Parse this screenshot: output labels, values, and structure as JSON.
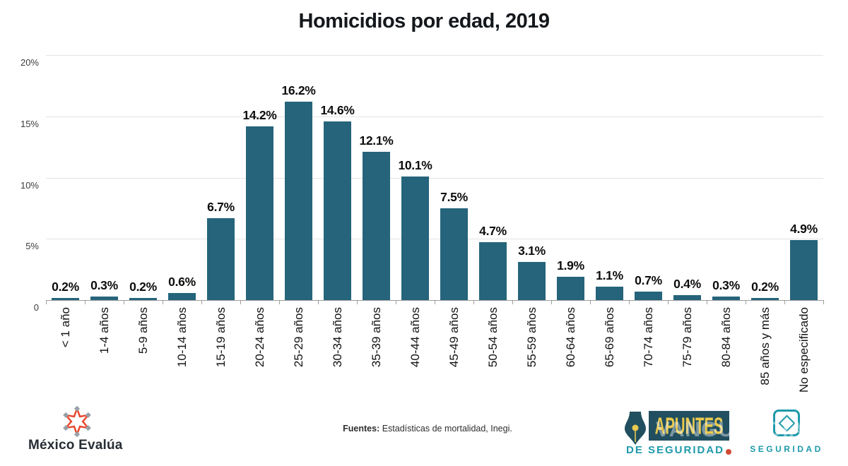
{
  "title": "Homicidios por edad, 2019",
  "chart_data": {
    "type": "bar",
    "title": "Homicidios por edad, 2019",
    "categories": [
      "< 1 año",
      "1-4 años",
      "5-9 años",
      "10-14 años",
      "15-19 años",
      "20-24 años",
      "25-29 años",
      "30-34 años",
      "35-39 años",
      "40-44 años",
      "45-49 años",
      "50-54 años",
      "55-59 años",
      "60-64 años",
      "65-69 años",
      "70-74 años",
      "75-79 años",
      "80-84 años",
      "85 años y más",
      "No especificado"
    ],
    "values": [
      0.2,
      0.3,
      0.2,
      0.6,
      6.7,
      14.2,
      16.2,
      14.6,
      12.1,
      10.1,
      7.5,
      4.7,
      3.1,
      1.9,
      1.1,
      0.7,
      0.4,
      0.3,
      0.2,
      4.9
    ],
    "value_labels": [
      "0.2%",
      "0.3%",
      "0.2%",
      "0.6%",
      "6.7%",
      "14.2%",
      "16.2%",
      "14.6%",
      "12.1%",
      "10.1%",
      "7.5%",
      "4.7%",
      "3.1%",
      "1.9%",
      "1.1%",
      "0.7%",
      "0.4%",
      "0.3%",
      "0.2%",
      "4.9%"
    ],
    "xlabel": "",
    "ylabel": "",
    "ylim": [
      0,
      20
    ],
    "yticks": [
      {
        "value": 0,
        "label": "0"
      },
      {
        "value": 5,
        "label": "5%"
      },
      {
        "value": 10,
        "label": "10%"
      },
      {
        "value": 15,
        "label": "15%"
      },
      {
        "value": 20,
        "label": "20%"
      }
    ],
    "grid": true,
    "legend": false,
    "bar_color": "#25647B"
  },
  "footer": {
    "source_label": "Fuentes:",
    "source_text": " Estadísticas de mortalidad, Inegi.",
    "mexico_evalua": {
      "name": "México Evalúa",
      "star_color": "#E8482E",
      "tip_color": "#98A1A8",
      "text_color": "#272D35"
    },
    "apuntes": {
      "line1": "APUNTES",
      "line2": "DE SEGURIDAD",
      "box_color": "#214F60",
      "line1_color": "#E9C94E",
      "line2_color": "#1E99AA",
      "dot_color": "#D14B34"
    },
    "seguridad": {
      "label": "SEGURIDAD",
      "color": "#1E99AA"
    },
    "watermark": "VANGUARDIA"
  }
}
